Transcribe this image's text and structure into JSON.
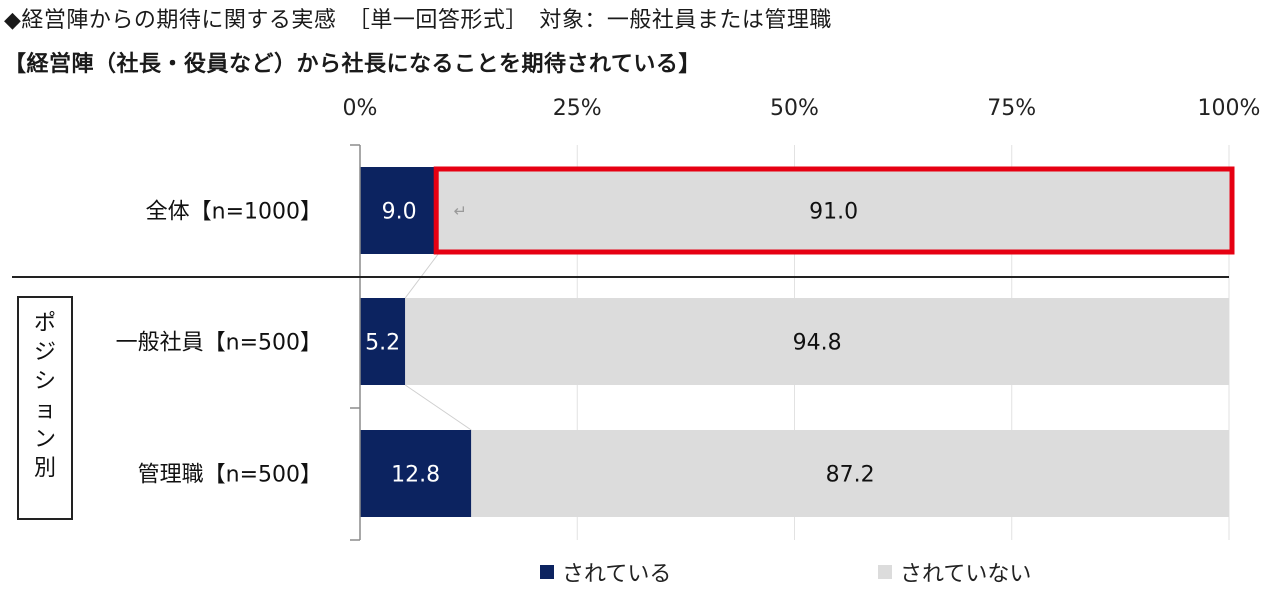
{
  "header": {
    "text": "◆経営陣からの期待に関する実感　［単一回答形式］　対象：一般社員または管理職"
  },
  "chart_title": "【経営陣（社長・役員など）から社長になることを期待されている】",
  "group_label": "ポジション別",
  "return_mark": "↵",
  "colors": {
    "series1": "#0c2360",
    "series2": "#dcdcdc",
    "highlight": "#e60012"
  },
  "chart_data": {
    "type": "bar",
    "orientation": "horizontal",
    "stacked": "percent",
    "categories": [
      "全体【n=1000】",
      "一般社員【n=500】",
      "管理職【n=500】"
    ],
    "series": [
      {
        "name": "されている",
        "values": [
          9.0,
          5.2,
          12.8
        ]
      },
      {
        "name": "されていない",
        "values": [
          91.0,
          94.8,
          87.2
        ]
      }
    ],
    "value_labels": [
      [
        "9.0",
        "5.2",
        "12.8"
      ],
      [
        "91.0",
        "94.8",
        "87.2"
      ]
    ],
    "xlim": [
      0,
      100
    ],
    "xticks": [
      "0%",
      "25%",
      "50%",
      "75%",
      "100%"
    ],
    "grid": true,
    "legend": "bottom",
    "highlighted": {
      "category": "全体【n=1000】",
      "series": "されていない"
    }
  }
}
